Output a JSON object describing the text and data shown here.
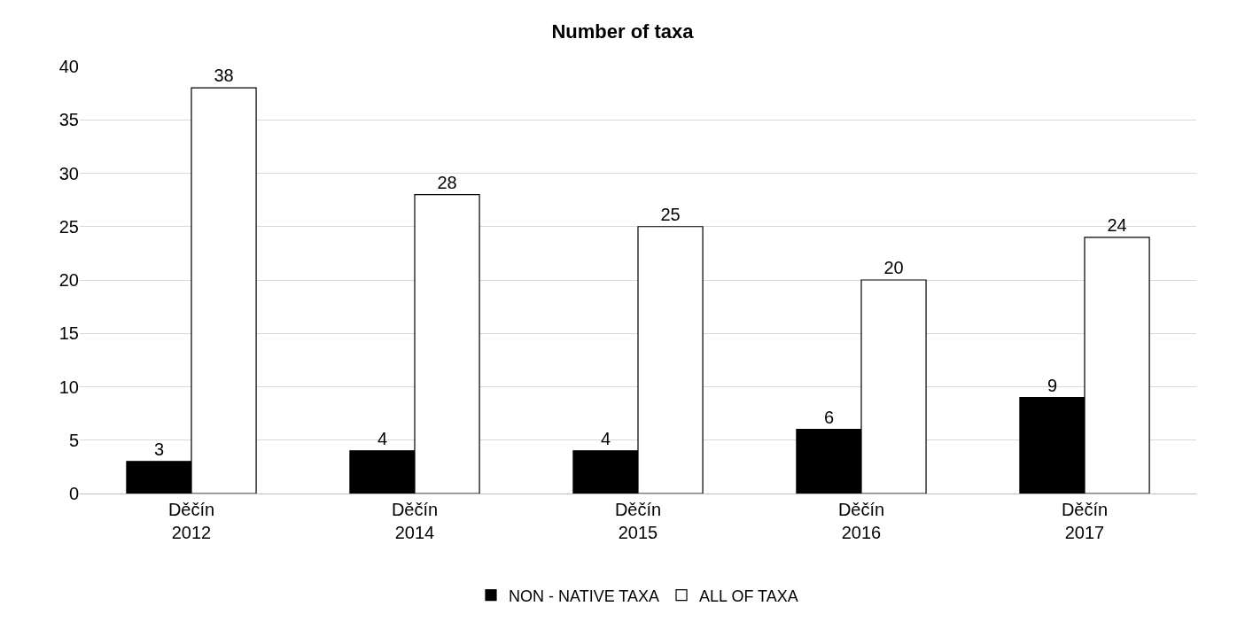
{
  "chart_data": {
    "type": "bar",
    "title": "Number of taxa",
    "categories": [
      "Děčín\n2012",
      "Děčín\n2014",
      "Děčín\n2015",
      "Děčín\n2016",
      "Děčín\n2017"
    ],
    "series": [
      {
        "name": "NON - NATIVE TAXA",
        "color": "#000000",
        "values": [
          3,
          4,
          4,
          6,
          9
        ]
      },
      {
        "name": "ALL OF TAXA",
        "color": "#ffffff",
        "values": [
          38,
          28,
          25,
          20,
          24
        ]
      }
    ],
    "ylim": [
      0,
      40
    ],
    "yticks": [
      0,
      5,
      10,
      15,
      20,
      25,
      30,
      35,
      40
    ],
    "grid": "y",
    "legend": "bottom",
    "data_labels": true
  }
}
